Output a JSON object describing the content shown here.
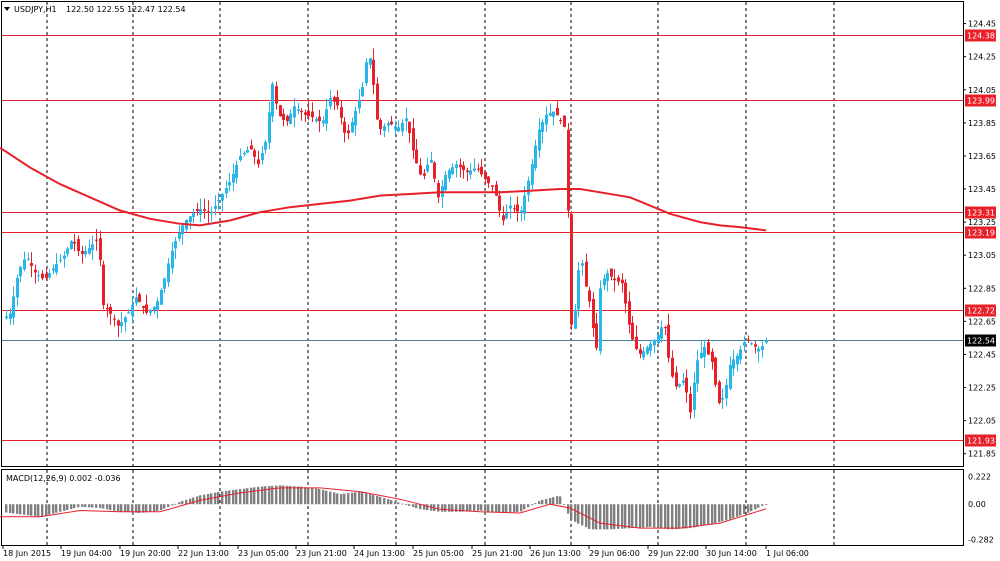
{
  "colors": {
    "bull": "#29b6e8",
    "bear": "#e8202a",
    "ma": "#e8202a",
    "level": "#e8202a",
    "bid": "#4a7fa0",
    "grid": "#000000",
    "macd_hist": "#808080",
    "macd_signal": "#e8202a"
  },
  "header": {
    "symbol_tf": "USDJPY,H1",
    "ohlc": "122.50 122.55 122.47 122.54"
  },
  "price_axis": {
    "labels": [
      "124.45",
      "124.25",
      "124.05",
      "123.85",
      "123.65",
      "123.45",
      "123.25",
      "123.05",
      "122.85",
      "122.65",
      "122.45",
      "122.25",
      "122.05",
      "121.85"
    ]
  },
  "levels": [
    {
      "value": 124.38,
      "label": "124.38"
    },
    {
      "value": 123.99,
      "label": "123.99"
    },
    {
      "value": 123.31,
      "label": "123.31"
    },
    {
      "value": 123.19,
      "label": "123.19"
    },
    {
      "value": 122.72,
      "label": "122.72"
    },
    {
      "value": 121.93,
      "label": "121.93"
    }
  ],
  "bid_level": {
    "value": 122.54,
    "label": "122.54"
  },
  "time_axis": {
    "labels": [
      "18 Jun 2015",
      "19 Jun 04:00",
      "19 Jun 20:00",
      "22 Jun 13:00",
      "23 Jun 05:00",
      "23 Jun 21:00",
      "24 Jun 13:00",
      "25 Jun 05:00",
      "25 Jun 21:00",
      "26 Jun 13:00",
      "29 Jun 06:00",
      "29 Jun 22:00",
      "30 Jun 14:00",
      "1 Jul 06:00"
    ]
  },
  "macd": {
    "label": "MACD(12,26,9) 0.002 -0.036",
    "axis_labels": [
      "0.222",
      "0.00",
      "-0.282"
    ]
  },
  "chart_data": {
    "type": "candlestick",
    "symbol": "USDJPY",
    "timeframe": "H1",
    "last_bar": {
      "open": 122.5,
      "high": 122.55,
      "low": 122.47,
      "close": 122.54
    },
    "price_range": [
      121.8,
      124.52
    ],
    "moving_average_path": [
      [
        0,
        123.7
      ],
      [
        30,
        123.58
      ],
      [
        60,
        123.48
      ],
      [
        90,
        123.4
      ],
      [
        120,
        123.32
      ],
      [
        150,
        123.27
      ],
      [
        180,
        123.24
      ],
      [
        200,
        123.23
      ],
      [
        230,
        123.26
      ],
      [
        260,
        123.31
      ],
      [
        290,
        123.34
      ],
      [
        320,
        123.36
      ],
      [
        350,
        123.38
      ],
      [
        380,
        123.41
      ],
      [
        410,
        123.42
      ],
      [
        440,
        123.43
      ],
      [
        470,
        123.43
      ],
      [
        500,
        123.43
      ],
      [
        530,
        123.44
      ],
      [
        560,
        123.45
      ],
      [
        580,
        123.45
      ],
      [
        600,
        123.43
      ],
      [
        630,
        123.4
      ],
      [
        650,
        123.35
      ],
      [
        670,
        123.3
      ],
      [
        700,
        123.25
      ],
      [
        720,
        123.23
      ],
      [
        740,
        123.22
      ],
      [
        766,
        123.2
      ]
    ],
    "price_path": [
      [
        0,
        122.65
      ],
      [
        10,
        122.7
      ],
      [
        18,
        122.95
      ],
      [
        26,
        123.05
      ],
      [
        34,
        122.95
      ],
      [
        44,
        122.9
      ],
      [
        54,
        122.98
      ],
      [
        64,
        123.05
      ],
      [
        72,
        123.15
      ],
      [
        80,
        123.05
      ],
      [
        90,
        123.1
      ],
      [
        98,
        123.15
      ],
      [
        103,
        122.75
      ],
      [
        110,
        122.7
      ],
      [
        118,
        122.62
      ],
      [
        128,
        122.7
      ],
      [
        136,
        122.8
      ],
      [
        146,
        122.7
      ],
      [
        156,
        122.75
      ],
      [
        164,
        122.9
      ],
      [
        170,
        123.05
      ],
      [
        176,
        123.15
      ],
      [
        184,
        123.25
      ],
      [
        192,
        123.3
      ],
      [
        200,
        123.33
      ],
      [
        210,
        123.3
      ],
      [
        220,
        123.4
      ],
      [
        230,
        123.5
      ],
      [
        240,
        123.65
      ],
      [
        250,
        123.7
      ],
      [
        258,
        123.6
      ],
      [
        266,
        123.75
      ],
      [
        272,
        124.1
      ],
      [
        278,
        123.9
      ],
      [
        286,
        123.85
      ],
      [
        294,
        123.95
      ],
      [
        304,
        123.9
      ],
      [
        314,
        123.88
      ],
      [
        322,
        123.85
      ],
      [
        330,
        124.0
      ],
      [
        338,
        123.95
      ],
      [
        346,
        123.75
      ],
      [
        354,
        123.9
      ],
      [
        362,
        124.05
      ],
      [
        368,
        124.3
      ],
      [
        372,
        124.15
      ],
      [
        378,
        123.8
      ],
      [
        388,
        123.85
      ],
      [
        398,
        123.82
      ],
      [
        406,
        123.88
      ],
      [
        414,
        123.65
      ],
      [
        422,
        123.5
      ],
      [
        430,
        123.65
      ],
      [
        438,
        123.4
      ],
      [
        446,
        123.55
      ],
      [
        456,
        123.6
      ],
      [
        466,
        123.55
      ],
      [
        476,
        123.58
      ],
      [
        486,
        123.5
      ],
      [
        494,
        123.45
      ],
      [
        502,
        123.25
      ],
      [
        510,
        123.35
      ],
      [
        520,
        123.3
      ],
      [
        530,
        123.55
      ],
      [
        538,
        123.8
      ],
      [
        546,
        123.9
      ],
      [
        554,
        123.92
      ],
      [
        562,
        123.85
      ],
      [
        566,
        123.8
      ],
      [
        570,
        122.6
      ],
      [
        576,
        122.75
      ],
      [
        580,
        123.1
      ],
      [
        584,
        122.9
      ],
      [
        590,
        122.75
      ],
      [
        596,
        122.45
      ],
      [
        600,
        122.85
      ],
      [
        606,
        122.95
      ],
      [
        614,
        122.9
      ],
      [
        622,
        122.88
      ],
      [
        628,
        122.65
      ],
      [
        634,
        122.5
      ],
      [
        640,
        122.45
      ],
      [
        648,
        122.5
      ],
      [
        656,
        122.55
      ],
      [
        664,
        122.65
      ],
      [
        670,
        122.35
      ],
      [
        676,
        122.25
      ],
      [
        684,
        122.3
      ],
      [
        690,
        122.1
      ],
      [
        696,
        122.4
      ],
      [
        704,
        122.5
      ],
      [
        712,
        122.4
      ],
      [
        718,
        122.15
      ],
      [
        724,
        122.2
      ],
      [
        730,
        122.4
      ],
      [
        738,
        122.45
      ],
      [
        746,
        122.55
      ],
      [
        754,
        122.5
      ],
      [
        760,
        122.48
      ],
      [
        766,
        122.54
      ]
    ],
    "macd_path": [
      [
        0,
        -0.06
      ],
      [
        20,
        -0.08
      ],
      [
        40,
        -0.1
      ],
      [
        60,
        -0.06
      ],
      [
        80,
        -0.02
      ],
      [
        100,
        -0.03
      ],
      [
        120,
        -0.06
      ],
      [
        140,
        -0.07
      ],
      [
        160,
        -0.05
      ],
      [
        180,
        0.02
      ],
      [
        200,
        0.07
      ],
      [
        220,
        0.1
      ],
      [
        240,
        0.12
      ],
      [
        260,
        0.14
      ],
      [
        280,
        0.15
      ],
      [
        300,
        0.14
      ],
      [
        320,
        0.12
      ],
      [
        340,
        0.08
      ],
      [
        360,
        0.1
      ],
      [
        380,
        0.06
      ],
      [
        400,
        0.01
      ],
      [
        420,
        -0.04
      ],
      [
        440,
        -0.06
      ],
      [
        460,
        -0.06
      ],
      [
        480,
        -0.05
      ],
      [
        500,
        -0.07
      ],
      [
        520,
        -0.06
      ],
      [
        540,
        0.03
      ],
      [
        560,
        0.07
      ],
      [
        570,
        -0.12
      ],
      [
        590,
        -0.2
      ],
      [
        610,
        -0.2
      ],
      [
        630,
        -0.19
      ],
      [
        650,
        -0.18
      ],
      [
        670,
        -0.2
      ],
      [
        690,
        -0.19
      ],
      [
        710,
        -0.16
      ],
      [
        730,
        -0.12
      ],
      [
        750,
        -0.06
      ],
      [
        766,
        0.002
      ]
    ],
    "signal_path": [
      [
        0,
        -0.1
      ],
      [
        40,
        -0.1
      ],
      [
        80,
        -0.05
      ],
      [
        120,
        -0.06
      ],
      [
        160,
        -0.06
      ],
      [
        200,
        0.03
      ],
      [
        240,
        0.09
      ],
      [
        280,
        0.13
      ],
      [
        320,
        0.13
      ],
      [
        360,
        0.1
      ],
      [
        400,
        0.04
      ],
      [
        440,
        -0.04
      ],
      [
        480,
        -0.06
      ],
      [
        520,
        -0.07
      ],
      [
        550,
        0.0
      ],
      [
        570,
        -0.03
      ],
      [
        600,
        -0.15
      ],
      [
        640,
        -0.19
      ],
      [
        680,
        -0.19
      ],
      [
        720,
        -0.15
      ],
      [
        766,
        -0.036
      ]
    ],
    "macd_range": [
      -0.3,
      0.24
    ]
  }
}
